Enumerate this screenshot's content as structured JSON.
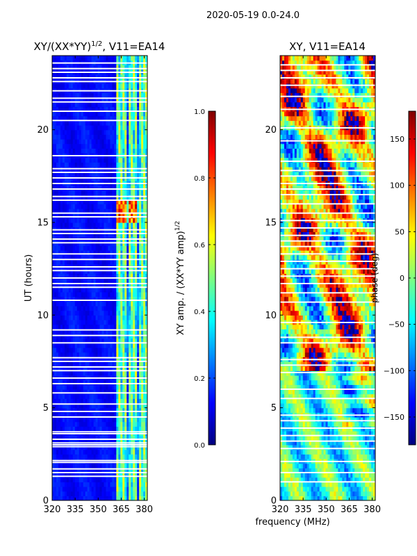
{
  "figure": {
    "suptitle": "2020-05-19 0.0-24.0",
    "xlabel": "frequency (MHz)"
  },
  "colors": {
    "jet": [
      "#00007f",
      "#0000ff",
      "#007fff",
      "#00ffff",
      "#7fff7f",
      "#ffff00",
      "#ff7f00",
      "#ff0000",
      "#7f0000"
    ],
    "gap": "#ffffff"
  },
  "chart_data": [
    {
      "type": "heatmap",
      "title_main": "XY/(XX*YY)",
      "title_exp": "1/2",
      "title_tail": ", V11=EA14",
      "xlabel": "frequency (MHz)",
      "ylabel": "UT (hours)",
      "xlim": [
        320,
        382
      ],
      "ylim": [
        0,
        24
      ],
      "xticks": [
        "320",
        "335",
        "350",
        "365",
        "380"
      ],
      "yticks": [
        "0",
        "5",
        "10",
        "15",
        "20"
      ],
      "colorbar": {
        "label_main": "XY amp. / (XX*YY amp)",
        "label_exp": "1/2",
        "range": [
          0.0,
          1.0
        ],
        "ticks": [
          "0.0",
          "0.2",
          "0.4",
          "0.6",
          "0.8",
          "1.0"
        ]
      },
      "pattern": "low amplitude (dark blue) below 362 MHz; higher, variable amplitude 362-382 MHz; orange/red patches near 15-16 UT",
      "flagged_time_gaps_hours": [
        1.3,
        1.5,
        1.7,
        2.05,
        2.15,
        2.9,
        3.0,
        3.1,
        3.3,
        3.6,
        3.7,
        4.5,
        4.8,
        5.2,
        5.8,
        6.3,
        6.6,
        7.0,
        7.2,
        7.5,
        7.7,
        8.5,
        8.9,
        9.2,
        10.8,
        11.5,
        11.7,
        12.0,
        12.4,
        12.6,
        13.0,
        13.3,
        13.9,
        14.1,
        14.4,
        14.6,
        15.3,
        15.5,
        16.2,
        16.4,
        16.8,
        17.1,
        17.4,
        17.7,
        17.9,
        18.6,
        20.5,
        21.0,
        21.5,
        21.7,
        22.1,
        22.6,
        22.8,
        23.1,
        23.3,
        23.6
      ]
    },
    {
      "type": "heatmap",
      "title_main": "XY, V11=EA14",
      "xlabel": "frequency (MHz)",
      "ylabel": "",
      "xlim": [
        320,
        382
      ],
      "ylim": [
        0,
        24
      ],
      "xticks": [
        "320",
        "335",
        "350",
        "365",
        "380"
      ],
      "yticks": [
        "0",
        "5",
        "10",
        "15",
        "20"
      ],
      "colorbar": {
        "label_main": "phase (deg)",
        "range": [
          -180,
          180
        ],
        "ticks": [
          "−150",
          "−100",
          "−50",
          "0",
          "50",
          "100",
          "150"
        ]
      },
      "pattern": "XY phase: mostly cyan/green (near 0 deg) below 7 UT; strongly red/blue wrapped structure 7-24 UT",
      "flagged_time_gaps_hours": [
        1.0,
        1.5,
        2.1,
        2.8,
        3.2,
        3.5,
        3.9,
        4.3,
        4.6,
        5.5,
        6.0,
        6.9,
        7.3,
        7.6,
        8.5,
        8.8,
        9.6,
        10.7,
        11.2,
        11.7,
        12.1,
        12.5,
        12.9,
        13.3,
        13.7,
        14.0,
        14.3,
        14.7,
        15.1,
        15.5,
        16.0,
        16.5,
        16.8,
        17.1,
        17.5,
        17.8,
        18.3,
        19.4,
        20.1,
        21.1,
        21.8,
        22.4,
        22.8,
        23.2,
        23.5
      ]
    }
  ]
}
